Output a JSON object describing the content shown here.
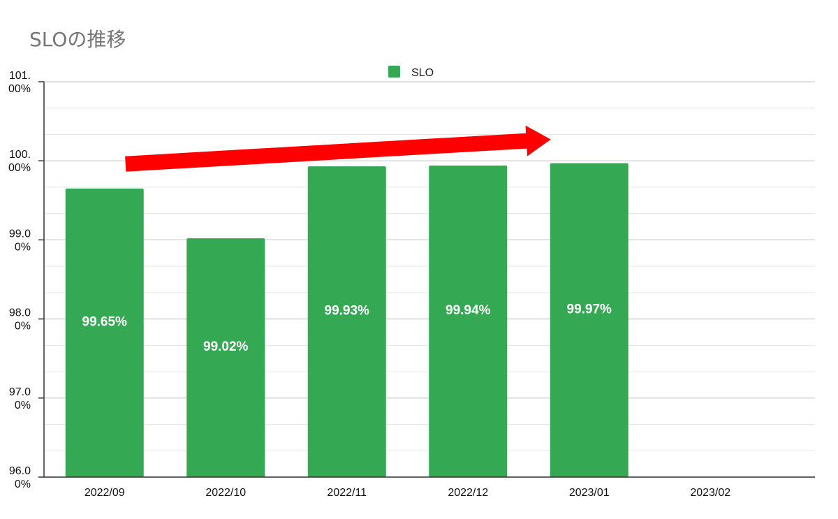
{
  "chart_data": {
    "type": "bar",
    "title": "SLOの推移",
    "xlabel": "",
    "ylabel": "",
    "legend": {
      "position": "top",
      "entries": [
        "SLO"
      ]
    },
    "categories": [
      "2022/09",
      "2022/10",
      "2022/11",
      "2022/12",
      "2023/01",
      "2023/02"
    ],
    "series": [
      {
        "name": "SLO",
        "values": [
          99.65,
          99.02,
          99.93,
          99.94,
          99.97,
          null
        ],
        "data_labels": [
          "99.65%",
          "99.02%",
          "99.93%",
          "99.94%",
          "99.97%",
          ""
        ]
      }
    ],
    "ylim": [
      96,
      101
    ],
    "yticks": [
      {
        "value": 101,
        "line1": "101.",
        "line2": "00%"
      },
      {
        "value": 100,
        "line1": "100.",
        "line2": "00%"
      },
      {
        "value": 99,
        "line1": "99.0",
        "line2": "0%"
      },
      {
        "value": 98,
        "line1": "98.0",
        "line2": "0%"
      },
      {
        "value": 97,
        "line1": "97.0",
        "line2": "0%"
      },
      {
        "value": 96,
        "line1": "96.0",
        "line2": "0%"
      }
    ],
    "grid": true,
    "annotations": [
      {
        "type": "arrow",
        "color": "#ff0000",
        "from": {
          "x": "2022/09",
          "y": 99.96
        },
        "to": {
          "x": "2023/01",
          "y": 100.27
        }
      }
    ],
    "colors": {
      "bar": "#34a853",
      "arrow": "#ff0000",
      "grid_major": "#cccccc",
      "grid_minor": "#e6e6e6",
      "axis": "#333333"
    }
  }
}
